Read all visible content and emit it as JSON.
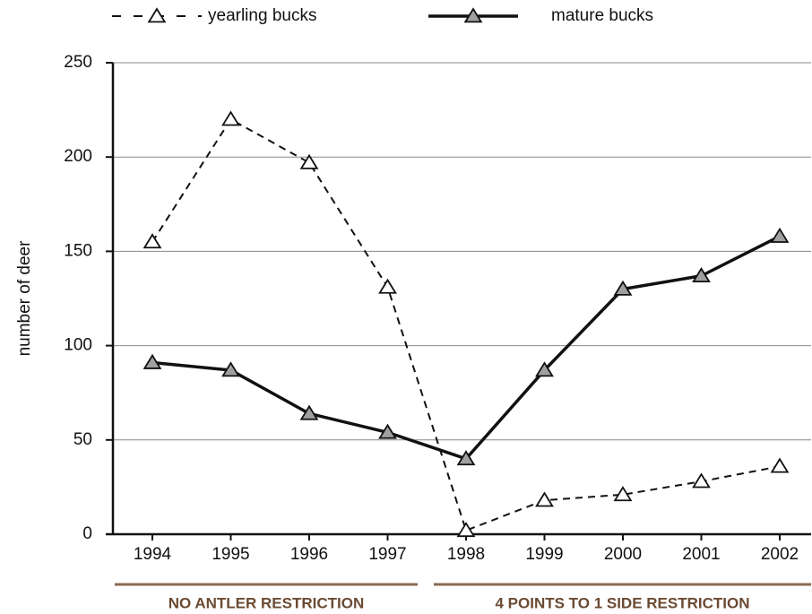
{
  "chart_data": {
    "type": "line",
    "y_label": "number of deer",
    "categories": [
      "1994",
      "1995",
      "1996",
      "1997",
      "1998",
      "1999",
      "2000",
      "2001",
      "2002"
    ],
    "series": [
      {
        "name": "yearling bucks",
        "color": "#111111",
        "style": "dashed",
        "marker_fill": "#ffffff",
        "values": [
          155,
          220,
          197,
          131,
          2,
          18,
          21,
          28,
          36
        ]
      },
      {
        "name": "mature bucks",
        "color": "#111111",
        "style": "solid",
        "marker_fill": "#a0a0a0",
        "values": [
          91,
          87,
          64,
          54,
          40,
          87,
          130,
          137,
          158
        ]
      }
    ],
    "ylim": [
      0,
      250
    ],
    "yticks": [
      0,
      50,
      100,
      150,
      200,
      250
    ],
    "grid": true,
    "annotations": [
      "NO ANTLER RESTRICTION",
      "4 POINTS TO 1 SIDE RESTRICTION"
    ]
  }
}
